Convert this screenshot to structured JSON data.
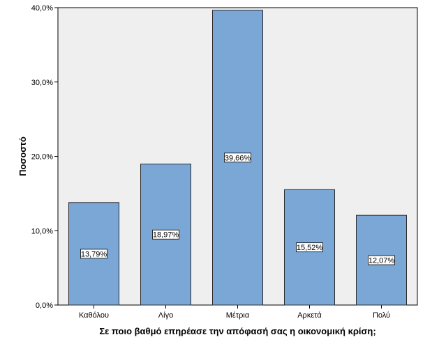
{
  "chart_data": {
    "type": "bar",
    "title": "",
    "categories": [
      "Καθόλου",
      "Λίγο",
      "Μέτρια",
      "Αρκετά",
      "Πολύ"
    ],
    "values": [
      13.79,
      18.97,
      39.66,
      15.52,
      12.07
    ],
    "data_labels": [
      "13,79%",
      "18,97%",
      "39,66%",
      "15,52%",
      "12,07%"
    ],
    "xlabel": "Σε ποιο βαθμό επηρέασε την απόφασή σας η οικονομική κρίση;",
    "ylabel": "Ποσοστό",
    "ylim": [
      0,
      40
    ],
    "yticks": [
      0,
      10,
      20,
      30,
      40
    ],
    "ytick_labels": [
      "0,0%",
      "10,0%",
      "20,0%",
      "30,0%",
      "40,0%"
    ],
    "grid": false,
    "colors": {
      "bar_fill": "#7aa7d6",
      "bar_stroke": "#2b2b2b",
      "plot_background": "#efefef",
      "label_box": "#ffffff"
    }
  }
}
